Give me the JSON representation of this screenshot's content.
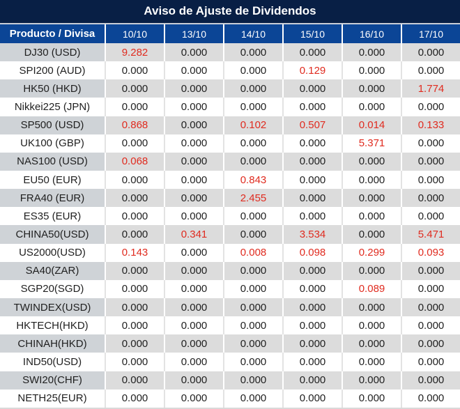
{
  "title": "Aviso de Ajuste de Dividendos",
  "table": {
    "header": {
      "product_label": "Producto / Divisa",
      "dates": [
        "10/10",
        "13/10",
        "14/10",
        "15/10",
        "16/10",
        "17/10"
      ]
    },
    "rows": [
      {
        "label": "DJ30 (USD)",
        "values": [
          "9.282",
          "0.000",
          "0.000",
          "0.000",
          "0.000",
          "0.000"
        ],
        "highlight": [
          0
        ]
      },
      {
        "label": "SPI200 (AUD)",
        "values": [
          "0.000",
          "0.000",
          "0.000",
          "0.129",
          "0.000",
          "0.000"
        ],
        "highlight": [
          3
        ]
      },
      {
        "label": "HK50 (HKD)",
        "values": [
          "0.000",
          "0.000",
          "0.000",
          "0.000",
          "0.000",
          "1.774"
        ],
        "highlight": [
          5
        ]
      },
      {
        "label": "Nikkei225 (JPN)",
        "values": [
          "0.000",
          "0.000",
          "0.000",
          "0.000",
          "0.000",
          "0.000"
        ],
        "highlight": []
      },
      {
        "label": "SP500 (USD)",
        "values": [
          "0.868",
          "0.000",
          "0.102",
          "0.507",
          "0.014",
          "0.133"
        ],
        "highlight": [
          0,
          2,
          3,
          4,
          5
        ]
      },
      {
        "label": "UK100 (GBP)",
        "values": [
          "0.000",
          "0.000",
          "0.000",
          "0.000",
          "5.371",
          "0.000"
        ],
        "highlight": [
          4
        ]
      },
      {
        "label": "NAS100 (USD)",
        "values": [
          "0.068",
          "0.000",
          "0.000",
          "0.000",
          "0.000",
          "0.000"
        ],
        "highlight": [
          0
        ]
      },
      {
        "label": "EU50 (EUR)",
        "values": [
          "0.000",
          "0.000",
          "0.843",
          "0.000",
          "0.000",
          "0.000"
        ],
        "highlight": [
          2
        ]
      },
      {
        "label": "FRA40 (EUR)",
        "values": [
          "0.000",
          "0.000",
          "2.455",
          "0.000",
          "0.000",
          "0.000"
        ],
        "highlight": [
          2
        ]
      },
      {
        "label": "ES35 (EUR)",
        "values": [
          "0.000",
          "0.000",
          "0.000",
          "0.000",
          "0.000",
          "0.000"
        ],
        "highlight": []
      },
      {
        "label": "CHINA50(USD)",
        "values": [
          "0.000",
          "0.341",
          "0.000",
          "3.534",
          "0.000",
          "5.471"
        ],
        "highlight": [
          1,
          3,
          5
        ]
      },
      {
        "label": "US2000(USD)",
        "values": [
          "0.143",
          "0.000",
          "0.008",
          "0.098",
          "0.299",
          "0.093"
        ],
        "highlight": [
          0,
          2,
          3,
          4,
          5
        ]
      },
      {
        "label": "SA40(ZAR)",
        "values": [
          "0.000",
          "0.000",
          "0.000",
          "0.000",
          "0.000",
          "0.000"
        ],
        "highlight": []
      },
      {
        "label": "SGP20(SGD)",
        "values": [
          "0.000",
          "0.000",
          "0.000",
          "0.000",
          "0.089",
          "0.000"
        ],
        "highlight": [
          4
        ]
      },
      {
        "label": "TWINDEX(USD)",
        "values": [
          "0.000",
          "0.000",
          "0.000",
          "0.000",
          "0.000",
          "0.000"
        ],
        "highlight": []
      },
      {
        "label": "HKTECH(HKD)",
        "values": [
          "0.000",
          "0.000",
          "0.000",
          "0.000",
          "0.000",
          "0.000"
        ],
        "highlight": []
      },
      {
        "label": "CHINAH(HKD)",
        "values": [
          "0.000",
          "0.000",
          "0.000",
          "0.000",
          "0.000",
          "0.000"
        ],
        "highlight": []
      },
      {
        "label": "IND50(USD)",
        "values": [
          "0.000",
          "0.000",
          "0.000",
          "0.000",
          "0.000",
          "0.000"
        ],
        "highlight": []
      },
      {
        "label": "SWI20(CHF)",
        "values": [
          "0.000",
          "0.000",
          "0.000",
          "0.000",
          "0.000",
          "0.000"
        ],
        "highlight": []
      },
      {
        "label": "NETH25(EUR)",
        "values": [
          "0.000",
          "0.000",
          "0.000",
          "0.000",
          "0.000",
          "0.000"
        ],
        "highlight": []
      }
    ]
  },
  "colors": {
    "title_bg": "#081f45",
    "header_bg": "#0b4596",
    "row_alt_bg": "#dcdcdc",
    "row_alt_label_bg": "#cfd3d7",
    "row_plain_bg": "#ffffff",
    "highlight_red": "#e02b1f",
    "text": "#1f1f1f",
    "header_text": "#ffffff"
  }
}
